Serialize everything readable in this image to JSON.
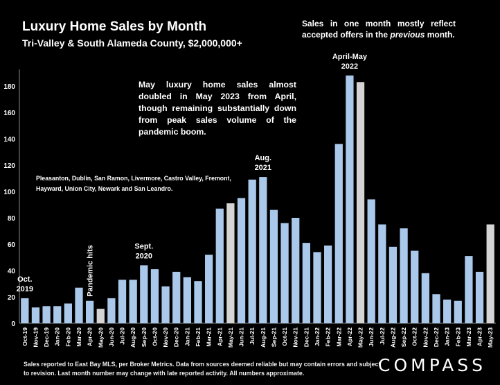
{
  "header": {
    "title": "Luxury Home Sales by Month",
    "subtitle": "Tri-Valley & South Alameda County, $2,000,000+"
  },
  "note_top": {
    "line1": "Sales in one month mostly reflect accepted offers in the",
    "italic": "previous",
    "line2": " month."
  },
  "callout": "May luxury home sales almost doubled in May 2023 from April, though remaining substantially down from peak sales volume of the pandemic boom.",
  "cities": "Pleasanton, Dublin, San Ramon, Livermore, Castro Valley, Fremont, Hayward, Union City, Newark and San Leandro.",
  "footer": "Sales reported to East Bay MLS, per Broker Metrics. Data from sources deemed reliable but may contain errors and subject to revision. Last month number may change with late reported activity. All numbers approximate.",
  "logo": "COMPASS",
  "colors": {
    "bar": "#a9c8ea",
    "highlight": "#d4d4d4",
    "background": "#000000"
  },
  "annotations": [
    {
      "category": "Oct-19",
      "lines": [
        "Oct.",
        "2019"
      ]
    },
    {
      "category": "Apr-20",
      "lines": [
        "Pandemic hits"
      ],
      "vertical": true
    },
    {
      "category": "Sep-20",
      "lines": [
        "Sept.",
        "2020"
      ]
    },
    {
      "category": "Aug-21",
      "lines": [
        "Aug.",
        "2021"
      ]
    },
    {
      "category": "Apr-22",
      "lines": [
        "April-May",
        "2022"
      ]
    }
  ],
  "chart_data": {
    "type": "bar",
    "title": "Luxury Home Sales by Month",
    "ylim": [
      0,
      190
    ],
    "yticks": [
      0,
      20,
      40,
      60,
      80,
      100,
      120,
      140,
      160,
      180
    ],
    "categories": [
      "Oct-19",
      "Nov-19",
      "Dec-19",
      "Jan-20",
      "Feb-20",
      "Mar-20",
      "Apr-20",
      "May-20",
      "Jun-20",
      "Jul-20",
      "Aug-20",
      "Sep-20",
      "Oct-20",
      "Nov-20",
      "Dec-20",
      "Jan-21",
      "Feb-21",
      "Mar-21",
      "Apr-21",
      "May-21",
      "Jun-21",
      "Jul-21",
      "Aug-21",
      "Sep-21",
      "Oct-21",
      "Nov-21",
      "Dec-21",
      "Jan-22",
      "Feb-22",
      "Mar-22",
      "Apr-22",
      "May-22",
      "Jun-22",
      "Jul-22",
      "Aug-22",
      "Sep-22",
      "Oct-22",
      "Nov-22",
      "Dec-22",
      "Jan-23",
      "Feb-23",
      "Mar-23",
      "Apr-23",
      "May-23"
    ],
    "values": [
      19,
      12,
      13,
      13,
      15,
      27,
      17,
      11,
      19,
      33,
      33,
      44,
      41,
      28,
      39,
      35,
      32,
      52,
      87,
      91,
      95,
      109,
      111,
      86,
      76,
      80,
      61,
      54,
      59,
      136,
      188,
      183,
      94,
      75,
      58,
      72,
      55,
      38,
      22,
      18,
      17,
      51,
      39,
      75
    ],
    "highlighted": [
      "May-20",
      "May-21",
      "May-22",
      "May-23"
    ],
    "grid": false,
    "legend": "none"
  }
}
